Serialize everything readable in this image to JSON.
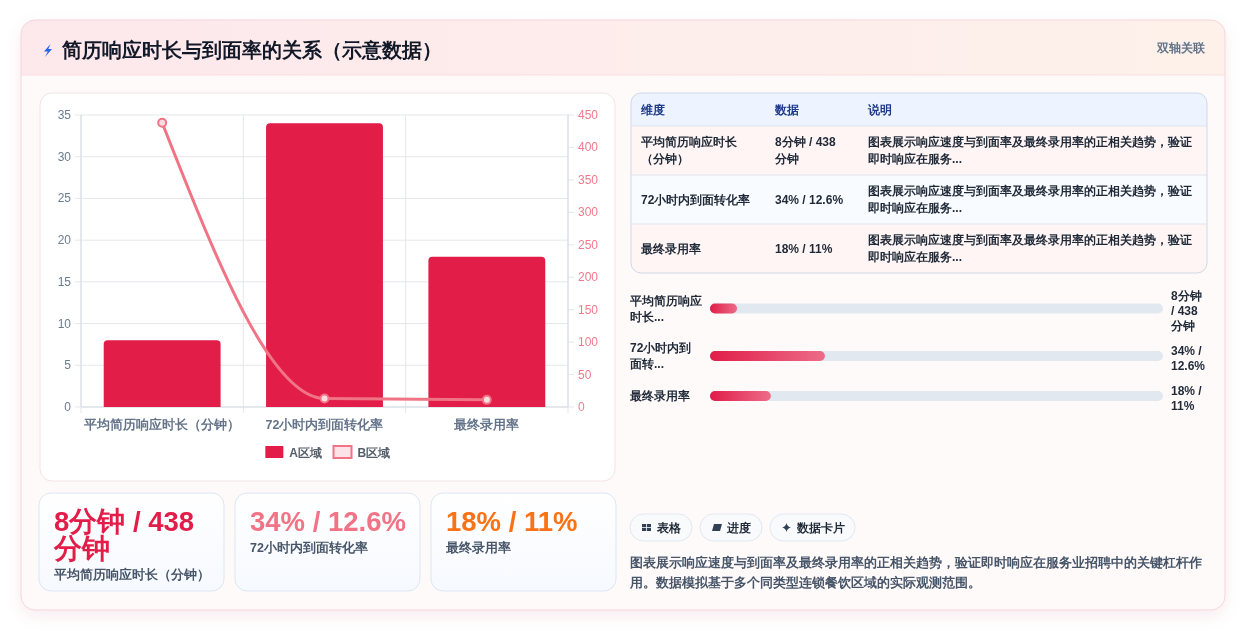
{
  "chart_data": [
    {
      "type": "other",
      "title": "简历响应时长与到面率的关系（示意数据）",
      "subtitle": "双轴关联"
    },
    {
      "type": "bar",
      "categories": [
        "平均简历响应时长（分钟）",
        "72小时内到面转化率",
        "最终录用率"
      ],
      "series": [
        {
          "name": "A区域",
          "type": "bar",
          "color": "#e11d48",
          "values": [
            8,
            34,
            18
          ]
        },
        {
          "name": "B区域",
          "type": "line",
          "axis": "y2",
          "color": "#f07485",
          "marker": "circle",
          "values": [
            438,
            13,
            11
          ]
        }
      ],
      "ylim": [
        0,
        35
      ],
      "yticks": [
        0,
        5,
        10,
        15,
        20,
        25,
        30,
        35
      ],
      "y2lim": [
        0,
        450
      ],
      "y2ticks": [
        0,
        50,
        100,
        150,
        200,
        250,
        300,
        350,
        400,
        450
      ],
      "grid": true,
      "legend": "bottom"
    },
    {
      "type": "other",
      "annotations": [
        "维度",
        "数据",
        "说明",
        "平均简历响应时长（分钟）",
        "8分钟 / 438 分钟",
        "图表展示响应速度与到面率及最终录用率的正相关趋势，验证即时响应在服务...",
        "72小时内到面转化率",
        "34% / 12.6%",
        "图表展示响应速度与到面率及最终录用率的正相关趋势，验证即时响应在服务...",
        "最终录用率",
        "18% / 11%",
        "图表展示响应速度与到面率及最终录用率的正相关趋势，验证即时响应在服务..."
      ]
    },
    {
      "type": "bar",
      "orientation": "horizontal",
      "categories": [
        "平均简历响应时长...",
        "72小时内到面转...",
        "最终录用率"
      ],
      "values": [
        8,
        34,
        18
      ],
      "value_labels": [
        "8分钟 / 438 分钟",
        "34% / 12.6%",
        "18% / 11%"
      ],
      "xlim": [
        0,
        134
      ],
      "color": "#e11d48"
    },
    {
      "type": "other",
      "annotations": [
        "8分钟 / 438 分钟",
        "平均简历响应时长（分钟）",
        "34% / 12.6%",
        "72小时内到面转化率",
        "18% / 11%",
        "最终录用率"
      ]
    },
    {
      "type": "other",
      "annotations": [
        "表格",
        "进度",
        "数据卡片"
      ]
    },
    {
      "type": "other",
      "annotations": [
        "图表展示响应速度与到面率及最终录用率的正相关趋势，验证即时响应在服务业招聘中的关键杠杆作用。数据模拟基于多个同类型连锁餐饮区域的实际观测范围。"
      ]
    }
  ]
}
